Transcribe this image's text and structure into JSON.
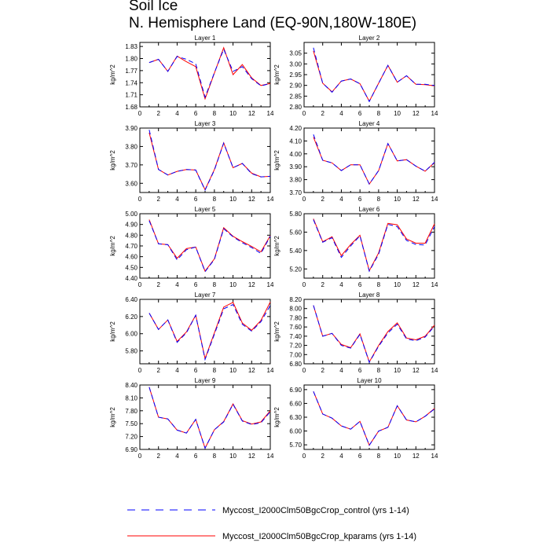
{
  "title_line1": "Soil Ice",
  "title_line2": "N. Hemisphere Land (EQ-90N,180W-180E)",
  "legend": [
    {
      "label": "Myccost_I2000Clm50BgcCrop_control (yrs 1-14)",
      "color": "#0000ff",
      "style": "dashed"
    },
    {
      "label": "Myccost_I2000Clm50BgcCrop_kparams (yrs 1-14)",
      "color": "#ff0000",
      "style": "solid"
    }
  ],
  "chart_data": [
    {
      "type": "line",
      "title": "Layer 1",
      "ylabel": "kg/m^2",
      "xlim": [
        0,
        14
      ],
      "ylim": [
        1.68,
        1.84
      ],
      "xticks": [
        0,
        2,
        4,
        6,
        8,
        10,
        12,
        14
      ],
      "yticks": [
        1.68,
        1.71,
        1.74,
        1.77,
        1.8,
        1.83
      ],
      "ytick_labels": [
        "1.68",
        "1.71",
        "1.74",
        "1.77",
        "1.80",
        "1.83"
      ],
      "x": [
        1,
        2,
        3,
        4,
        5,
        6,
        7,
        8,
        9,
        10,
        11,
        12,
        13,
        14
      ],
      "series": [
        {
          "name": "Myccost_I2000Clm50BgcCrop_control (yrs 1-14)",
          "values": [
            1.79,
            1.798,
            1.768,
            1.805,
            1.798,
            1.787,
            1.704,
            1.765,
            1.823,
            1.768,
            1.78,
            1.75,
            1.732,
            1.738
          ]
        },
        {
          "name": "Myccost_I2000Clm50BgcCrop_kparams (yrs 1-14)",
          "values": [
            1.79,
            1.798,
            1.768,
            1.806,
            1.792,
            1.78,
            1.7,
            1.764,
            1.827,
            1.76,
            1.785,
            1.752,
            1.733,
            1.738
          ]
        }
      ]
    },
    {
      "type": "line",
      "title": "Layer 2",
      "ylabel": "kg/m^2",
      "xlim": [
        0,
        14
      ],
      "ylim": [
        2.8,
        3.1
      ],
      "xticks": [
        0,
        2,
        4,
        6,
        8,
        10,
        12,
        14
      ],
      "yticks": [
        2.8,
        2.85,
        2.9,
        2.95,
        3.0,
        3.05
      ],
      "ytick_labels": [
        "2.80",
        "2.85",
        "2.90",
        "2.95",
        "3.00",
        "3.05"
      ],
      "x": [
        1,
        2,
        3,
        4,
        5,
        6,
        7,
        8,
        9,
        10,
        11,
        12,
        13,
        14
      ],
      "series": [
        {
          "name": "Myccost_I2000Clm50BgcCrop_control (yrs 1-14)",
          "values": [
            3.075,
            2.91,
            2.868,
            2.92,
            2.93,
            2.908,
            2.825,
            2.91,
            2.993,
            2.915,
            2.945,
            2.905,
            2.905,
            2.9
          ]
        },
        {
          "name": "Myccost_I2000Clm50BgcCrop_kparams (yrs 1-14)",
          "values": [
            3.06,
            2.91,
            2.87,
            2.92,
            2.93,
            2.908,
            2.826,
            2.91,
            2.993,
            2.915,
            2.945,
            2.905,
            2.903,
            2.898
          ]
        }
      ]
    },
    {
      "type": "line",
      "title": "Layer 3",
      "ylabel": "kg/m^2",
      "xlim": [
        0,
        14
      ],
      "ylim": [
        3.55,
        3.9
      ],
      "xticks": [
        0,
        2,
        4,
        6,
        8,
        10,
        12,
        14
      ],
      "yticks": [
        3.6,
        3.7,
        3.8,
        3.9
      ],
      "ytick_labels": [
        "3.60",
        "3.70",
        "3.80",
        "3.90"
      ],
      "x": [
        1,
        2,
        3,
        4,
        5,
        6,
        7,
        8,
        9,
        10,
        11,
        12,
        13,
        14
      ],
      "series": [
        {
          "name": "Myccost_I2000Clm50BgcCrop_control (yrs 1-14)",
          "values": [
            3.89,
            3.675,
            3.645,
            3.665,
            3.675,
            3.672,
            3.563,
            3.672,
            3.818,
            3.685,
            3.708,
            3.652,
            3.635,
            3.638
          ]
        },
        {
          "name": "Myccost_I2000Clm50BgcCrop_kparams (yrs 1-14)",
          "values": [
            3.875,
            3.675,
            3.645,
            3.665,
            3.675,
            3.672,
            3.565,
            3.675,
            3.82,
            3.685,
            3.708,
            3.655,
            3.635,
            3.638
          ]
        }
      ]
    },
    {
      "type": "line",
      "title": "Layer 4",
      "ylabel": "kg/m^2",
      "xlim": [
        0,
        14
      ],
      "ylim": [
        3.7,
        4.2
      ],
      "xticks": [
        0,
        2,
        4,
        6,
        8,
        10,
        12,
        14
      ],
      "yticks": [
        3.7,
        3.8,
        3.9,
        4.0,
        4.1,
        4.2
      ],
      "ytick_labels": [
        "3.70",
        "3.80",
        "3.90",
        "4.00",
        "4.10",
        "4.20"
      ],
      "x": [
        1,
        2,
        3,
        4,
        5,
        6,
        7,
        8,
        9,
        10,
        11,
        12,
        13,
        14
      ],
      "series": [
        {
          "name": "Myccost_I2000Clm50BgcCrop_control (yrs 1-14)",
          "values": [
            4.15,
            3.95,
            3.93,
            3.87,
            3.915,
            3.915,
            3.765,
            3.87,
            4.08,
            3.945,
            3.955,
            3.905,
            3.865,
            3.935
          ]
        },
        {
          "name": "Myccost_I2000Clm50BgcCrop_kparams (yrs 1-14)",
          "values": [
            4.13,
            3.95,
            3.93,
            3.87,
            3.915,
            3.915,
            3.765,
            3.87,
            4.08,
            3.945,
            3.955,
            3.905,
            3.865,
            3.932
          ]
        }
      ]
    },
    {
      "type": "line",
      "title": "Layer 5",
      "ylabel": "kg/m^2",
      "xlim": [
        0,
        14
      ],
      "ylim": [
        4.4,
        5.0
      ],
      "xticks": [
        0,
        2,
        4,
        6,
        8,
        10,
        12,
        14
      ],
      "yticks": [
        4.4,
        4.5,
        4.6,
        4.7,
        4.8,
        4.9,
        5.0
      ],
      "ytick_labels": [
        "4.40",
        "4.50",
        "4.60",
        "4.70",
        "4.80",
        "4.90",
        "5.00"
      ],
      "x": [
        1,
        2,
        3,
        4,
        5,
        6,
        7,
        8,
        9,
        10,
        11,
        12,
        13,
        14
      ],
      "series": [
        {
          "name": "Myccost_I2000Clm50BgcCrop_control (yrs 1-14)",
          "values": [
            4.935,
            4.72,
            4.712,
            4.57,
            4.665,
            4.69,
            4.46,
            4.575,
            4.86,
            4.785,
            4.73,
            4.685,
            4.63,
            4.79
          ]
        },
        {
          "name": "Myccost_I2000Clm50BgcCrop_kparams (yrs 1-14)",
          "values": [
            4.945,
            4.72,
            4.712,
            4.585,
            4.675,
            4.69,
            4.465,
            4.58,
            4.87,
            4.79,
            4.74,
            4.695,
            4.645,
            4.795
          ]
        }
      ]
    },
    {
      "type": "line",
      "title": "Layer 6",
      "ylabel": "kg/m^2",
      "xlim": [
        0,
        14
      ],
      "ylim": [
        5.1,
        5.8
      ],
      "xticks": [
        0,
        2,
        4,
        6,
        8,
        10,
        12,
        14
      ],
      "yticks": [
        5.2,
        5.4,
        5.6,
        5.8
      ],
      "ytick_labels": [
        "5.20",
        "5.40",
        "5.60",
        "5.80"
      ],
      "x": [
        1,
        2,
        3,
        4,
        5,
        6,
        7,
        8,
        9,
        10,
        11,
        12,
        13,
        14
      ],
      "series": [
        {
          "name": "Myccost_I2000Clm50BgcCrop_control (yrs 1-14)",
          "values": [
            5.735,
            5.49,
            5.54,
            5.325,
            5.45,
            5.56,
            5.175,
            5.36,
            5.685,
            5.66,
            5.51,
            5.465,
            5.46,
            5.66
          ]
        },
        {
          "name": "Myccost_I2000Clm50BgcCrop_kparams (yrs 1-14)",
          "values": [
            5.745,
            5.495,
            5.55,
            5.345,
            5.465,
            5.565,
            5.18,
            5.375,
            5.695,
            5.68,
            5.525,
            5.48,
            5.48,
            5.69
          ]
        }
      ]
    },
    {
      "type": "line",
      "title": "Layer 7",
      "ylabel": "kg/m^2",
      "xlim": [
        0,
        14
      ],
      "ylim": [
        5.65,
        6.4
      ],
      "xticks": [
        0,
        2,
        4,
        6,
        8,
        10,
        12,
        14
      ],
      "yticks": [
        5.8,
        6.0,
        6.2,
        6.4
      ],
      "ytick_labels": [
        "5.80",
        "6.00",
        "6.20",
        "6.40"
      ],
      "x": [
        1,
        2,
        3,
        4,
        5,
        6,
        7,
        8,
        9,
        10,
        11,
        12,
        13,
        14
      ],
      "series": [
        {
          "name": "Myccost_I2000Clm50BgcCrop_control (yrs 1-14)",
          "values": [
            6.24,
            6.05,
            6.16,
            5.9,
            6.01,
            6.215,
            5.7,
            5.995,
            6.29,
            6.34,
            6.11,
            6.03,
            6.14,
            6.33
          ]
        },
        {
          "name": "Myccost_I2000Clm50BgcCrop_kparams (yrs 1-14)",
          "values": [
            6.24,
            6.05,
            6.16,
            5.91,
            6.02,
            6.215,
            5.71,
            6.01,
            6.31,
            6.365,
            6.125,
            6.04,
            6.155,
            6.37
          ]
        }
      ]
    },
    {
      "type": "line",
      "title": "Layer 8",
      "ylabel": "kg/m^2",
      "xlim": [
        0,
        14
      ],
      "ylim": [
        6.8,
        8.2
      ],
      "xticks": [
        0,
        2,
        4,
        6,
        8,
        10,
        12,
        14
      ],
      "yticks": [
        6.8,
        7.0,
        7.2,
        7.4,
        7.6,
        7.8,
        8.0,
        8.2
      ],
      "ytick_labels": [
        "6.80",
        "7.00",
        "7.20",
        "7.40",
        "7.60",
        "7.80",
        "8.00",
        "8.20"
      ],
      "x": [
        1,
        2,
        3,
        4,
        5,
        6,
        7,
        8,
        9,
        10,
        11,
        12,
        13,
        14
      ],
      "series": [
        {
          "name": "Myccost_I2000Clm50BgcCrop_control (yrs 1-14)",
          "values": [
            8.07,
            7.4,
            7.46,
            7.2,
            7.14,
            7.44,
            6.83,
            7.18,
            7.47,
            7.66,
            7.34,
            7.3,
            7.38,
            7.62
          ]
        },
        {
          "name": "Myccost_I2000Clm50BgcCrop_kparams (yrs 1-14)",
          "values": [
            8.07,
            7.4,
            7.46,
            7.22,
            7.15,
            7.45,
            6.84,
            7.2,
            7.5,
            7.69,
            7.36,
            7.32,
            7.4,
            7.64
          ]
        }
      ]
    },
    {
      "type": "line",
      "title": "Layer 9",
      "ylabel": "kg/m^2",
      "xlim": [
        0,
        14
      ],
      "ylim": [
        6.9,
        8.4
      ],
      "xticks": [
        0,
        2,
        4,
        6,
        8,
        10,
        12,
        14
      ],
      "yticks": [
        6.9,
        7.2,
        7.5,
        7.8,
        8.1,
        8.4
      ],
      "ytick_labels": [
        "6.90",
        "7.20",
        "7.50",
        "7.80",
        "8.10",
        "8.40"
      ],
      "x": [
        1,
        2,
        3,
        4,
        5,
        6,
        7,
        8,
        9,
        10,
        11,
        12,
        13,
        14
      ],
      "series": [
        {
          "name": "Myccost_I2000Clm50BgcCrop_control (yrs 1-14)",
          "values": [
            8.35,
            7.65,
            7.61,
            7.35,
            7.28,
            7.6,
            6.93,
            7.36,
            7.54,
            7.95,
            7.56,
            7.48,
            7.52,
            7.78
          ]
        },
        {
          "name": "Myccost_I2000Clm50BgcCrop_kparams (yrs 1-14)",
          "values": [
            8.35,
            7.65,
            7.61,
            7.35,
            7.28,
            7.6,
            6.93,
            7.36,
            7.55,
            7.96,
            7.57,
            7.49,
            7.54,
            7.8
          ]
        }
      ]
    },
    {
      "type": "line",
      "title": "Layer 10",
      "ylabel": "kg/m^2",
      "xlim": [
        0,
        14
      ],
      "ylim": [
        5.6,
        7.0
      ],
      "xticks": [
        0,
        2,
        4,
        6,
        8,
        10,
        12,
        14
      ],
      "yticks": [
        5.7,
        6.0,
        6.3,
        6.6,
        6.9
      ],
      "ytick_labels": [
        "5.70",
        "6.00",
        "6.30",
        "6.60",
        "6.90"
      ],
      "x": [
        1,
        2,
        3,
        4,
        5,
        6,
        7,
        8,
        9,
        10,
        11,
        12,
        13,
        14
      ],
      "series": [
        {
          "name": "Myccost_I2000Clm50BgcCrop_control (yrs 1-14)",
          "values": [
            6.86,
            6.37,
            6.28,
            6.11,
            6.04,
            6.21,
            5.69,
            6.0,
            6.08,
            6.55,
            6.24,
            6.2,
            6.32,
            6.48
          ]
        },
        {
          "name": "Myccost_I2000Clm50BgcCrop_kparams (yrs 1-14)",
          "values": [
            6.86,
            6.37,
            6.28,
            6.11,
            6.04,
            6.21,
            5.69,
            6.0,
            6.08,
            6.55,
            6.24,
            6.2,
            6.32,
            6.49
          ]
        }
      ]
    }
  ]
}
